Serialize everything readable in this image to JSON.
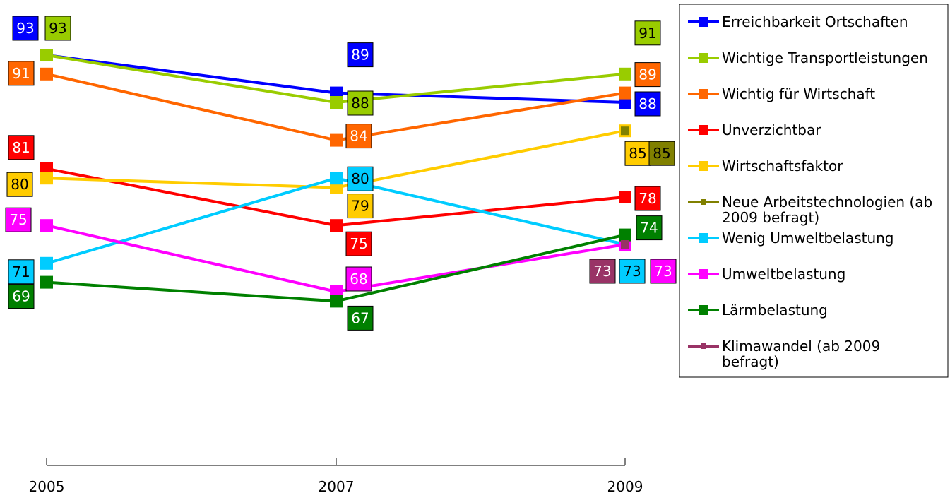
{
  "chart_data": {
    "type": "line",
    "x": [
      "2005",
      "2007",
      "2009"
    ],
    "series": [
      {
        "name": "Erreichbarkeit Ortschaften",
        "color": "#0000ff",
        "label_color": "#ffffff",
        "values": [
          93,
          89,
          88
        ]
      },
      {
        "name": "Wichtige Transportleistungen",
        "color": "#99cc00",
        "label_color": "#000000",
        "values": [
          93,
          88,
          91
        ]
      },
      {
        "name": "Wichtig für Wirtschaft",
        "color": "#ff6600",
        "label_color": "#ffffff",
        "values": [
          91,
          84,
          89
        ]
      },
      {
        "name": "Unverzichtbar",
        "color": "#ff0000",
        "label_color": "#ffffff",
        "values": [
          81,
          75,
          78
        ]
      },
      {
        "name": "Wirtschaftsfaktor",
        "color": "#ffcc00",
        "label_color": "#000000",
        "values": [
          80,
          79,
          85
        ]
      },
      {
        "name": "Neue Arbeitstechnologien (ab 2009 befragt)",
        "color": "#808000",
        "label_color": "#000000",
        "values": [
          null,
          null,
          85
        ]
      },
      {
        "name": "Wenig Umweltbelastung",
        "color": "#00ccff",
        "label_color": "#000000",
        "values": [
          71,
          80,
          73
        ]
      },
      {
        "name": "Umweltbelastung",
        "color": "#ff00ff",
        "label_color": "#ffffff",
        "values": [
          75,
          68,
          73
        ]
      },
      {
        "name": "Lärmbelastung",
        "color": "#008000",
        "label_color": "#ffffff",
        "values": [
          69,
          67,
          74
        ]
      },
      {
        "name": "Klimawandel (ab 2009 befragt)",
        "color": "#993366",
        "label_color": "#ffffff",
        "values": [
          null,
          null,
          73
        ]
      }
    ],
    "title": "",
    "xlabel": "",
    "ylabel": "",
    "legend": "right"
  }
}
